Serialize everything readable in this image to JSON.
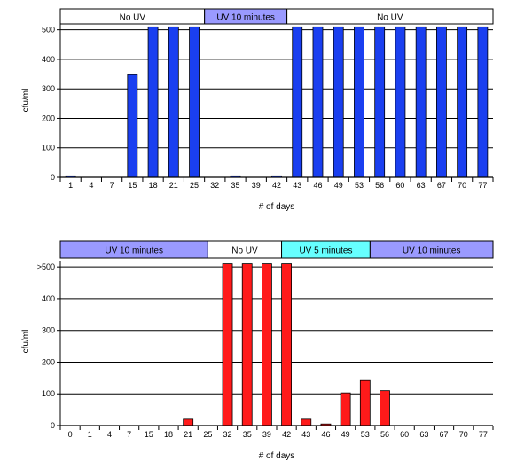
{
  "chart_data": [
    {
      "type": "bar",
      "xlabel": "# of days",
      "ylabel": "cfu/ml",
      "ylim": [
        0,
        520
      ],
      "yticks": [
        "0",
        "100",
        "200",
        "300",
        "400",
        "500"
      ],
      "grid": true,
      "bar_color": "#1a3ff0",
      "categories": [
        "1",
        "4",
        "7",
        "15",
        "18",
        "21",
        "25",
        "32",
        "35",
        "39",
        "42",
        "43",
        "46",
        "49",
        "53",
        "56",
        "60",
        "63",
        "67",
        "70",
        "77"
      ],
      "values": [
        5,
        0,
        0,
        348,
        510,
        510,
        510,
        0,
        5,
        0,
        5,
        510,
        510,
        510,
        510,
        510,
        510,
        510,
        510,
        510,
        510
      ],
      "phases": [
        {
          "label": "No UV",
          "from": 0,
          "to": 7,
          "color": "#ffffff"
        },
        {
          "label": "UV 10 minutes",
          "from": 7,
          "to": 11,
          "color": "#9a9aff"
        },
        {
          "label": "No UV",
          "from": 11,
          "to": 21,
          "color": "#ffffff"
        }
      ]
    },
    {
      "type": "bar",
      "xlabel": "# of days",
      "ylabel": "cfu/ml",
      "ylim": [
        0,
        520
      ],
      "yticks": [
        "0",
        "100",
        "200",
        "300",
        "400",
        ">500"
      ],
      "grid": true,
      "bar_color": "#ff1a1a",
      "categories": [
        "0",
        "1",
        "4",
        "7",
        "15",
        "18",
        "21",
        "25",
        "32",
        "35",
        "39",
        "42",
        "43",
        "46",
        "49",
        "53",
        "56",
        "60",
        "63",
        "67",
        "70",
        "77"
      ],
      "values": [
        0,
        0,
        0,
        0,
        0,
        0,
        20,
        0,
        510,
        510,
        510,
        510,
        20,
        5,
        103,
        142,
        110,
        0,
        0,
        0,
        0,
        0
      ],
      "phases": [
        {
          "label": "UV 10 minutes",
          "from": 0,
          "to": 7.5,
          "color": "#9a9aff"
        },
        {
          "label": "No UV",
          "from": 7.5,
          "to": 11.25,
          "color": "#ffffff"
        },
        {
          "label": "UV 5 minutes",
          "from": 11.25,
          "to": 15.75,
          "color": "#66ffff"
        },
        {
          "label": "UV 10 minutes",
          "from": 15.75,
          "to": 22,
          "color": "#9a9aff"
        }
      ]
    }
  ]
}
